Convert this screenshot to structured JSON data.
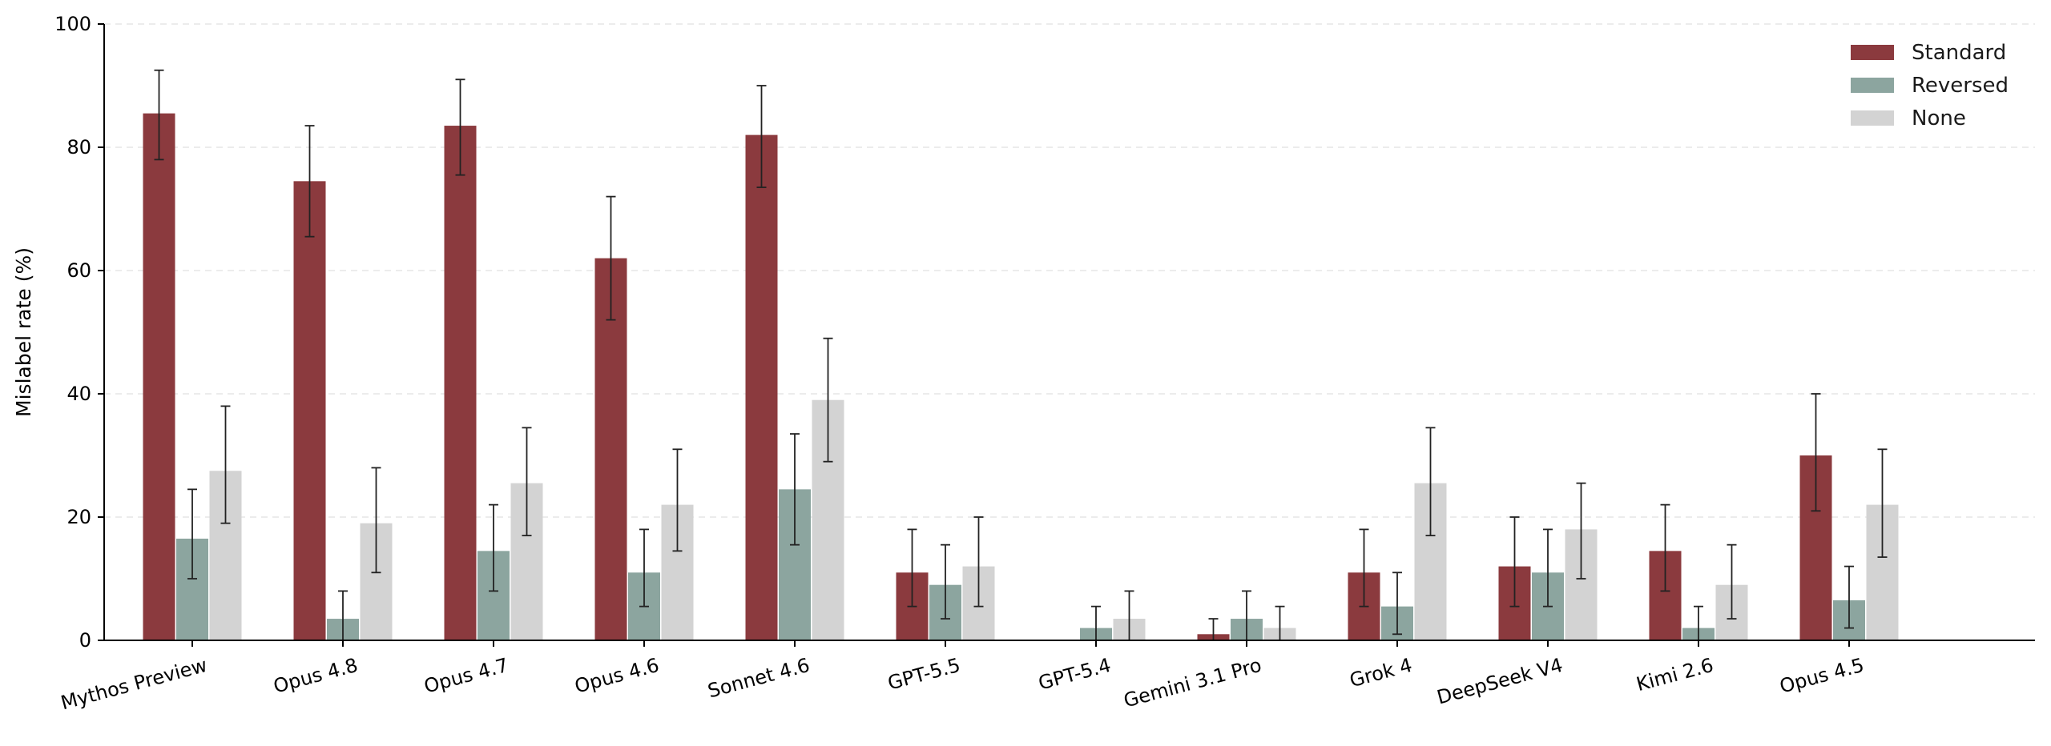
{
  "chart_data": {
    "type": "bar",
    "title": "",
    "xlabel": "",
    "ylabel": "Mislabel rate (%)",
    "ylim": [
      0,
      100
    ],
    "yticks": [
      0,
      20,
      40,
      60,
      80,
      100
    ],
    "grid": "horizontal dashed",
    "legend_position": "top-right",
    "error_bars": true,
    "categories": [
      "Mythos Preview",
      "Opus 4.8",
      "Opus 4.7",
      "Opus 4.6",
      "Sonnet 4.6",
      "GPT-5.5",
      "GPT-5.4",
      "Gemini 3.1 Pro",
      "Grok 4",
      "DeepSeek V4",
      "Kimi 2.6",
      "Opus 4.5"
    ],
    "series": [
      {
        "name": "Standard",
        "color": "#8b3a3e",
        "values": [
          85.5,
          74.5,
          83.5,
          62.0,
          82.0,
          11.0,
          0.0,
          1.0,
          11.0,
          12.0,
          14.5,
          30.0
        ],
        "err_low": [
          78.0,
          65.5,
          75.5,
          52.0,
          73.5,
          5.5,
          0.0,
          0.0,
          5.5,
          5.5,
          8.0,
          21.0
        ],
        "err_high": [
          92.5,
          83.5,
          91.0,
          72.0,
          90.0,
          18.0,
          0.0,
          3.5,
          18.0,
          20.0,
          22.0,
          40.0
        ]
      },
      {
        "name": "Reversed",
        "color": "#8ca59f",
        "values": [
          16.5,
          3.5,
          14.5,
          11.0,
          24.5,
          9.0,
          2.0,
          3.5,
          5.5,
          11.0,
          2.0,
          6.5
        ],
        "err_low": [
          10.0,
          0.0,
          8.0,
          5.5,
          15.5,
          3.5,
          0.0,
          0.0,
          1.0,
          5.5,
          0.0,
          2.0
        ],
        "err_high": [
          24.5,
          8.0,
          22.0,
          18.0,
          33.5,
          15.5,
          5.5,
          8.0,
          11.0,
          18.0,
          5.5,
          12.0
        ]
      },
      {
        "name": "None",
        "color": "#d3d3d3",
        "values": [
          27.5,
          19.0,
          25.5,
          22.0,
          39.0,
          12.0,
          3.5,
          2.0,
          25.5,
          18.0,
          9.0,
          22.0
        ],
        "err_low": [
          19.0,
          11.0,
          17.0,
          14.5,
          29.0,
          5.5,
          0.0,
          0.0,
          17.0,
          10.0,
          3.5,
          13.5
        ],
        "err_high": [
          38.0,
          28.0,
          34.5,
          31.0,
          49.0,
          20.0,
          8.0,
          5.5,
          34.5,
          25.5,
          15.5,
          31.0
        ]
      }
    ]
  }
}
